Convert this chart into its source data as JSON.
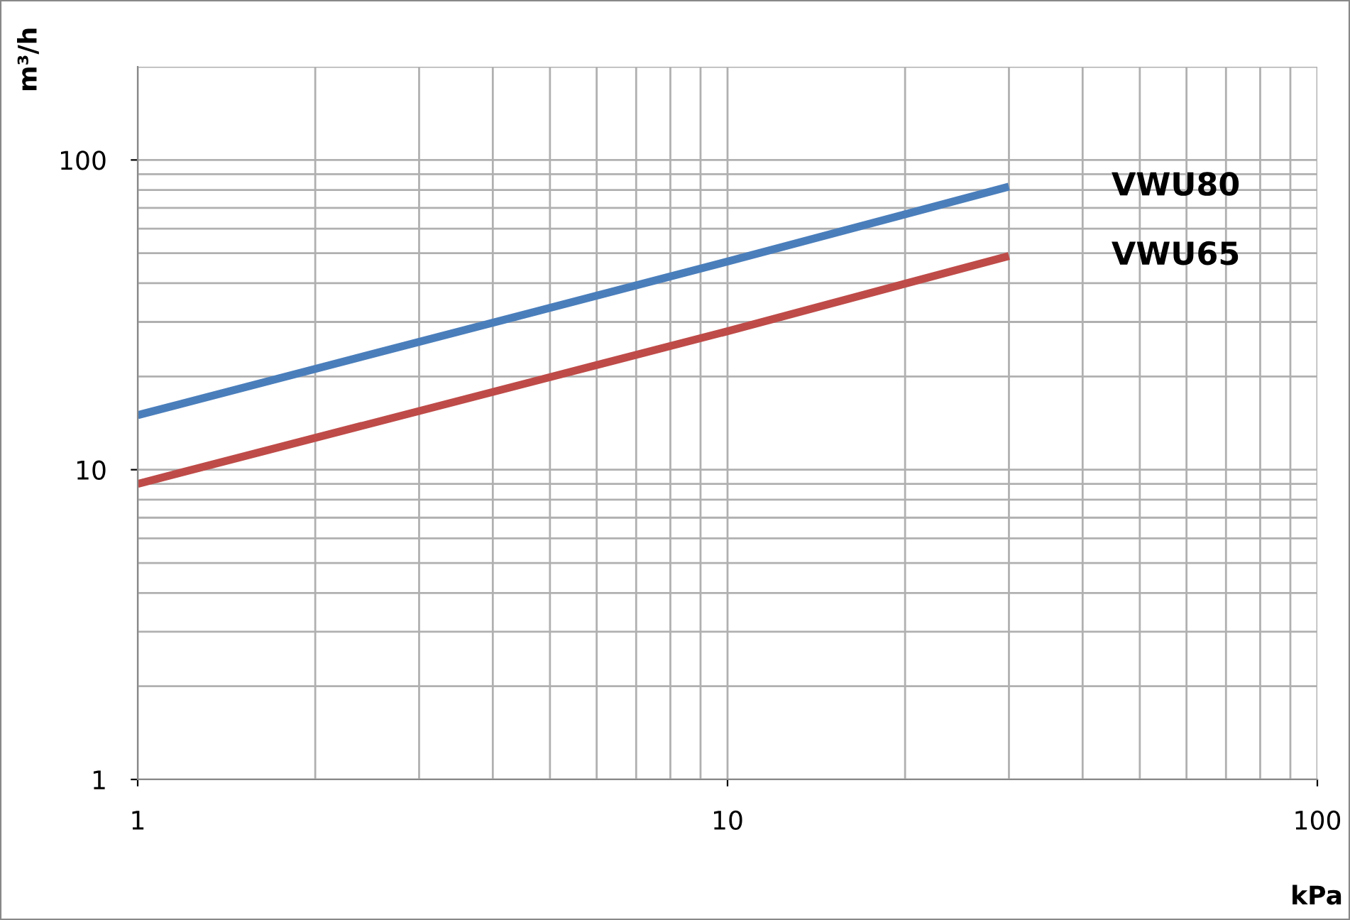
{
  "chart_data": {
    "type": "line",
    "xlabel": "kPa",
    "ylabel": "m³/h",
    "log": "xy",
    "xlim": [
      1,
      100
    ],
    "ylim": [
      1,
      200
    ],
    "xticks": [
      1,
      10,
      100
    ],
    "yticks": [
      1,
      10,
      100
    ],
    "grid": true,
    "legend": false,
    "line_style": "solid",
    "marker": "none",
    "series": [
      {
        "name": "VWU80",
        "color": "#4a7ebb",
        "x": [
          1,
          10,
          30
        ],
        "values": [
          15,
          47,
          82
        ]
      },
      {
        "name": "VWU65",
        "color": "#be4b48",
        "x": [
          1,
          10,
          30
        ],
        "values": [
          9,
          28,
          49
        ]
      }
    ]
  }
}
